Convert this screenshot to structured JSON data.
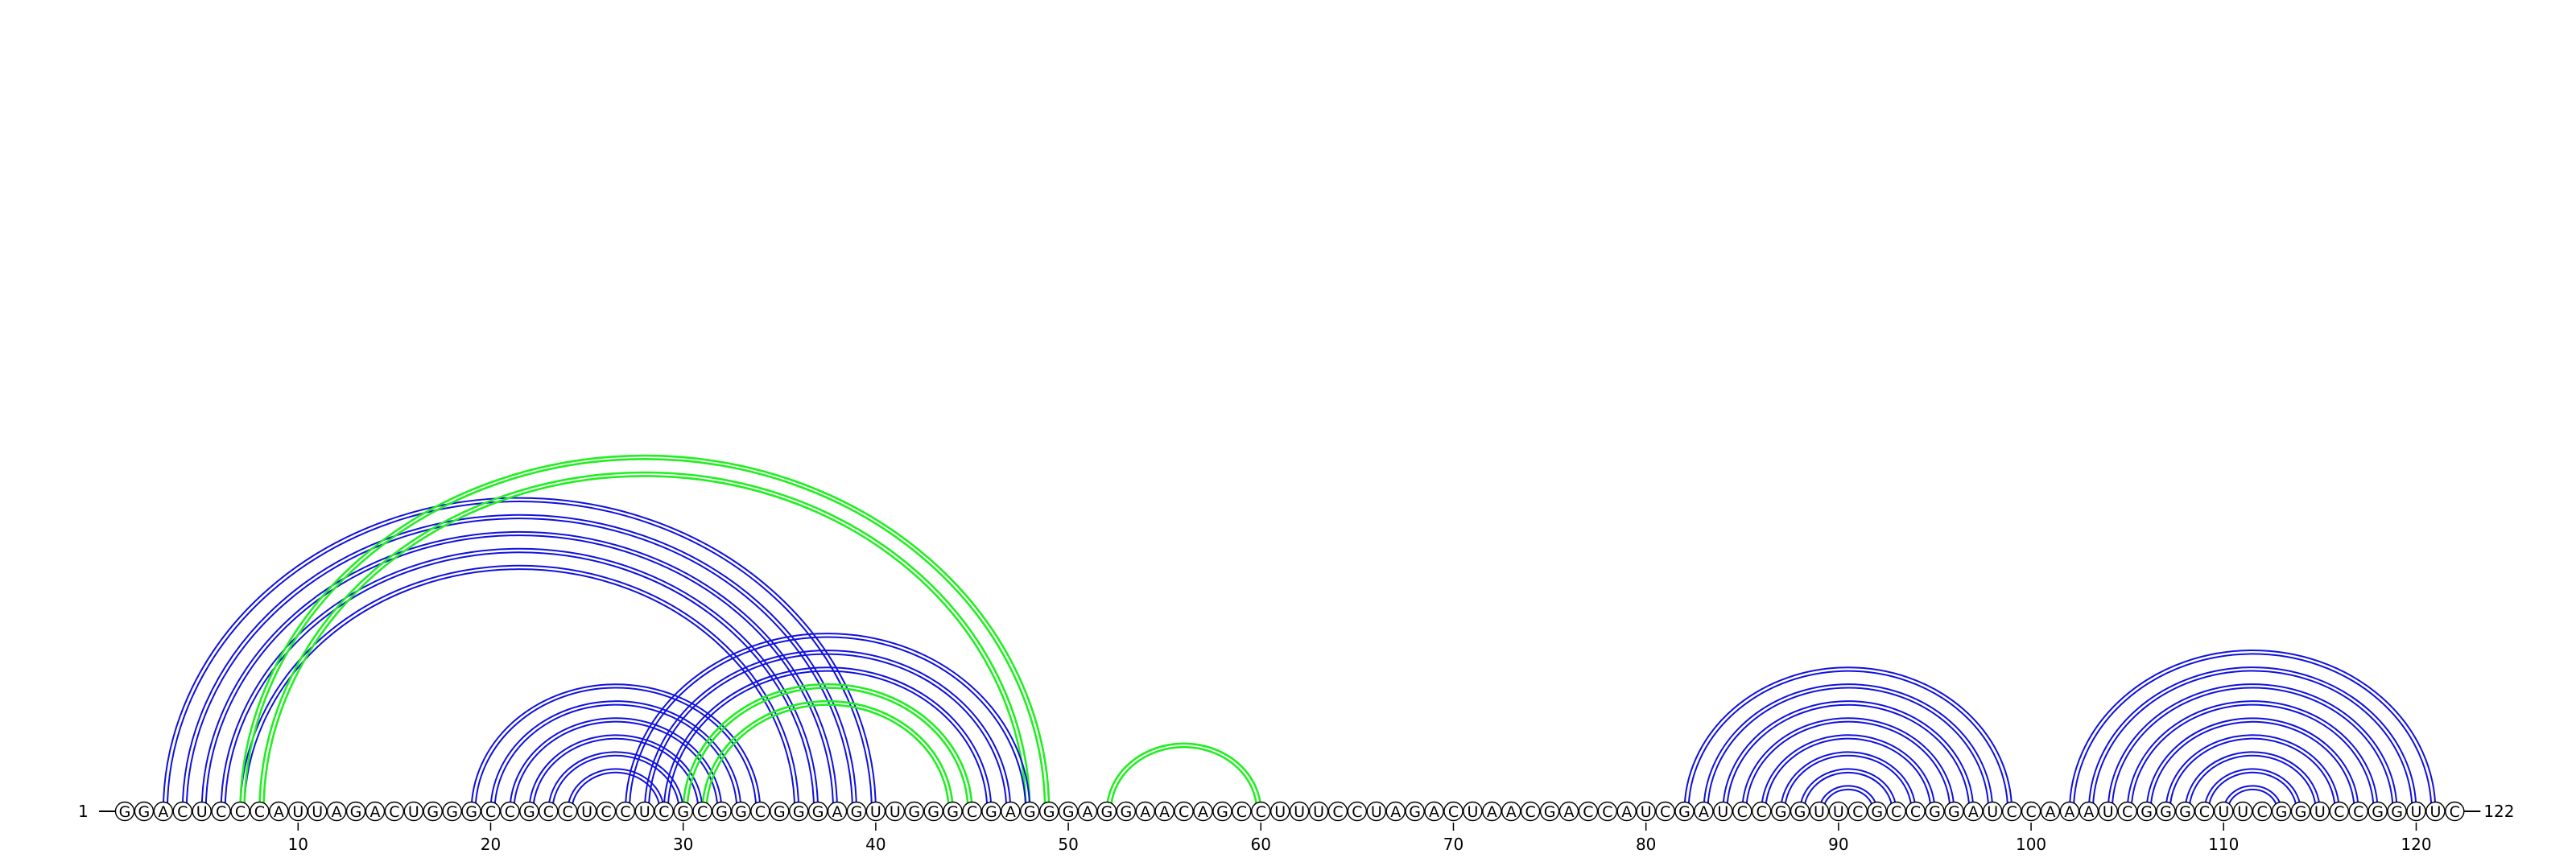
{
  "sequence": "GGACUCCCAUUAGACUGGGCCGCCUCCUCGCGGCGGGAGUUGGGCGAGGGAGGAACAGCCUUUCCUAGACUAACGACCAUCGAUCCGGUUCGCCGGAUCCAAAUCGGGCUUCGGUCCGGUUC",
  "start_label": "1",
  "end_label": "122",
  "tick_labels": [
    "10",
    "20",
    "30",
    "40",
    "50",
    "60",
    "70",
    "80",
    "90",
    "100",
    "110",
    "120"
  ],
  "colors": {
    "blue": "#1010dd",
    "green": "#22ee22",
    "backbone": "#000000",
    "nucleotide_fill": "#ffffff",
    "nucleotide_stroke": "#000000"
  },
  "arcs": [
    {
      "i": 3,
      "j": 40,
      "color": "blue"
    },
    {
      "i": 4,
      "j": 39,
      "color": "blue"
    },
    {
      "i": 5,
      "j": 38,
      "color": "blue"
    },
    {
      "i": 6,
      "j": 37,
      "color": "blue"
    },
    {
      "i": 7,
      "j": 36,
      "color": "blue"
    },
    {
      "i": 7,
      "j": 49,
      "color": "green"
    },
    {
      "i": 8,
      "j": 48,
      "color": "green"
    },
    {
      "i": 19,
      "j": 34,
      "color": "blue"
    },
    {
      "i": 20,
      "j": 33,
      "color": "blue"
    },
    {
      "i": 21,
      "j": 32,
      "color": "blue"
    },
    {
      "i": 22,
      "j": 31,
      "color": "blue"
    },
    {
      "i": 23,
      "j": 30,
      "color": "blue"
    },
    {
      "i": 24,
      "j": 29,
      "color": "blue"
    },
    {
      "i": 27,
      "j": 48,
      "color": "blue"
    },
    {
      "i": 28,
      "j": 47,
      "color": "blue"
    },
    {
      "i": 29,
      "j": 46,
      "color": "blue"
    },
    {
      "i": 30,
      "j": 45,
      "color": "blue"
    },
    {
      "i": 30,
      "j": 45,
      "color": "green"
    },
    {
      "i": 31,
      "j": 44,
      "color": "green"
    },
    {
      "i": 52,
      "j": 60,
      "color": "green"
    },
    {
      "i": 82,
      "j": 99,
      "color": "blue"
    },
    {
      "i": 83,
      "j": 98,
      "color": "blue"
    },
    {
      "i": 84,
      "j": 97,
      "color": "blue"
    },
    {
      "i": 85,
      "j": 96,
      "color": "blue"
    },
    {
      "i": 86,
      "j": 95,
      "color": "blue"
    },
    {
      "i": 87,
      "j": 94,
      "color": "blue"
    },
    {
      "i": 88,
      "j": 93,
      "color": "blue"
    },
    {
      "i": 89,
      "j": 92,
      "color": "blue"
    },
    {
      "i": 102,
      "j": 121,
      "color": "blue"
    },
    {
      "i": 103,
      "j": 120,
      "color": "blue"
    },
    {
      "i": 104,
      "j": 119,
      "color": "blue"
    },
    {
      "i": 105,
      "j": 118,
      "color": "blue"
    },
    {
      "i": 106,
      "j": 117,
      "color": "blue"
    },
    {
      "i": 107,
      "j": 116,
      "color": "blue"
    },
    {
      "i": 108,
      "j": 115,
      "color": "blue"
    },
    {
      "i": 109,
      "j": 114,
      "color": "blue"
    },
    {
      "i": 110,
      "j": 113,
      "color": "blue"
    }
  ]
}
